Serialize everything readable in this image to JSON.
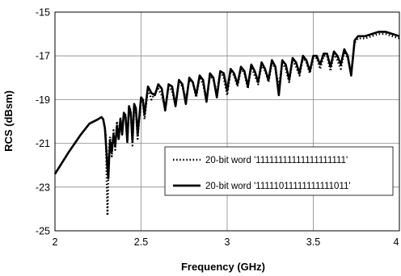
{
  "chart_data": {
    "type": "line",
    "xlabel": "Frequency (GHz)",
    "ylabel": "RCS (dBsm)",
    "xlim": [
      2,
      4
    ],
    "ylim": [
      -25,
      -15
    ],
    "x_ticks": [
      2,
      2.5,
      3,
      3.5,
      4
    ],
    "y_ticks": [
      -25,
      -23,
      -21,
      -19,
      -17,
      -15
    ],
    "x_tick_labels": [
      "2",
      "2.5",
      "3",
      "3.5",
      "4"
    ],
    "y_tick_labels": [
      "-25",
      "-23",
      "-21",
      "-19",
      "-17",
      "-15"
    ],
    "grid": true,
    "legend_position": "lower-right",
    "series": [
      {
        "name": "20-bit word '11111111111111111111'",
        "style": "dotted",
        "x": [
          2.0,
          2.08,
          2.15,
          2.2,
          2.25,
          2.27,
          2.28,
          2.295,
          2.3,
          2.305,
          2.31,
          2.315,
          2.32,
          2.33,
          2.34,
          2.35,
          2.36,
          2.37,
          2.38,
          2.39,
          2.4,
          2.41,
          2.42,
          2.43,
          2.44,
          2.45,
          2.46,
          2.47,
          2.48,
          2.5,
          2.51,
          2.52,
          2.54,
          2.56,
          2.58,
          2.6,
          2.62,
          2.64,
          2.66,
          2.68,
          2.7,
          2.72,
          2.74,
          2.76,
          2.78,
          2.8,
          2.82,
          2.84,
          2.86,
          2.88,
          2.9,
          2.92,
          2.94,
          2.96,
          2.98,
          3.0,
          3.02,
          3.04,
          3.06,
          3.08,
          3.1,
          3.12,
          3.14,
          3.16,
          3.18,
          3.2,
          3.22,
          3.24,
          3.26,
          3.28,
          3.3,
          3.32,
          3.34,
          3.36,
          3.38,
          3.4,
          3.42,
          3.44,
          3.46,
          3.48,
          3.5,
          3.52,
          3.54,
          3.56,
          3.58,
          3.6,
          3.62,
          3.64,
          3.66,
          3.68,
          3.7,
          3.72,
          3.74,
          3.76,
          3.8,
          3.84,
          3.88,
          3.92,
          3.96,
          4.0
        ],
        "y": [
          -22.4,
          -21.4,
          -20.6,
          -20.1,
          -19.9,
          -19.8,
          -19.9,
          -20.6,
          -22.5,
          -24.3,
          -22.4,
          -21.0,
          -20.7,
          -21.6,
          -20.4,
          -21.3,
          -20.0,
          -20.8,
          -19.8,
          -20.5,
          -19.6,
          -19.7,
          -21.0,
          -19.3,
          -19.5,
          -21.1,
          -19.3,
          -19.5,
          -20.8,
          -18.9,
          -19.1,
          -19.9,
          -18.5,
          -19.0,
          -18.7,
          -18.5,
          -18.8,
          -19.4,
          -18.4,
          -18.6,
          -19.3,
          -18.2,
          -18.4,
          -19.0,
          -18.1,
          -18.2,
          -18.9,
          -18.0,
          -18.3,
          -19.1,
          -17.9,
          -18.1,
          -18.7,
          -17.7,
          -18.0,
          -18.8,
          -17.7,
          -17.9,
          -18.4,
          -17.6,
          -17.8,
          -18.5,
          -17.5,
          -17.9,
          -18.3,
          -17.4,
          -17.7,
          -18.2,
          -17.3,
          -17.6,
          -18.4,
          -17.3,
          -17.6,
          -18.2,
          -17.2,
          -17.5,
          -17.9,
          -17.1,
          -17.3,
          -17.8,
          -17.1,
          -17.1,
          -17.6,
          -17.0,
          -17.0,
          -17.7,
          -16.9,
          -17.2,
          -17.6,
          -16.8,
          -17.1,
          -17.8,
          -16.4,
          -16.2,
          -16.2,
          -16.1,
          -16.0,
          -16.0,
          -16.1,
          -16.2
        ]
      },
      {
        "name": "20-bit word '11111011111111111011'",
        "style": "solid",
        "x": [
          2.0,
          2.08,
          2.15,
          2.2,
          2.25,
          2.27,
          2.28,
          2.29,
          2.3,
          2.305,
          2.31,
          2.315,
          2.32,
          2.33,
          2.34,
          2.35,
          2.36,
          2.37,
          2.38,
          2.39,
          2.4,
          2.41,
          2.42,
          2.43,
          2.44,
          2.45,
          2.46,
          2.47,
          2.48,
          2.5,
          2.51,
          2.52,
          2.54,
          2.56,
          2.58,
          2.6,
          2.62,
          2.64,
          2.66,
          2.68,
          2.7,
          2.72,
          2.74,
          2.76,
          2.78,
          2.8,
          2.82,
          2.84,
          2.86,
          2.88,
          2.9,
          2.92,
          2.94,
          2.96,
          2.98,
          3.0,
          3.02,
          3.04,
          3.06,
          3.08,
          3.1,
          3.12,
          3.14,
          3.16,
          3.18,
          3.2,
          3.22,
          3.24,
          3.26,
          3.28,
          3.3,
          3.32,
          3.34,
          3.36,
          3.38,
          3.4,
          3.42,
          3.44,
          3.46,
          3.48,
          3.5,
          3.52,
          3.54,
          3.56,
          3.58,
          3.6,
          3.62,
          3.64,
          3.66,
          3.68,
          3.7,
          3.72,
          3.74,
          3.76,
          3.8,
          3.84,
          3.88,
          3.92,
          3.96,
          4.0
        ],
        "y": [
          -22.4,
          -21.4,
          -20.6,
          -20.1,
          -19.9,
          -19.8,
          -19.9,
          -20.3,
          -21.5,
          -22.2,
          -22.6,
          -21.6,
          -20.9,
          -21.4,
          -20.6,
          -21.1,
          -20.2,
          -20.8,
          -19.9,
          -20.6,
          -19.6,
          -19.8,
          -20.9,
          -19.3,
          -19.6,
          -20.9,
          -19.2,
          -19.4,
          -20.6,
          -18.9,
          -19.0,
          -19.7,
          -18.4,
          -18.7,
          -18.8,
          -18.3,
          -18.5,
          -19.5,
          -18.3,
          -18.4,
          -19.3,
          -18.1,
          -18.3,
          -19.2,
          -18.0,
          -18.2,
          -18.8,
          -17.9,
          -18.1,
          -19.1,
          -17.8,
          -18.0,
          -18.9,
          -17.7,
          -17.8,
          -18.6,
          -17.6,
          -17.8,
          -18.3,
          -17.5,
          -17.7,
          -18.4,
          -17.4,
          -17.7,
          -18.2,
          -17.3,
          -17.6,
          -18.1,
          -17.2,
          -17.5,
          -18.8,
          -17.2,
          -17.4,
          -18.1,
          -17.1,
          -17.3,
          -17.8,
          -17.0,
          -17.2,
          -17.7,
          -17.0,
          -17.0,
          -17.4,
          -16.9,
          -16.9,
          -17.5,
          -16.8,
          -17.0,
          -17.4,
          -16.7,
          -17.0,
          -17.9,
          -16.3,
          -16.1,
          -16.1,
          -16.0,
          -15.9,
          -15.9,
          -16.0,
          -16.1
        ]
      }
    ]
  }
}
